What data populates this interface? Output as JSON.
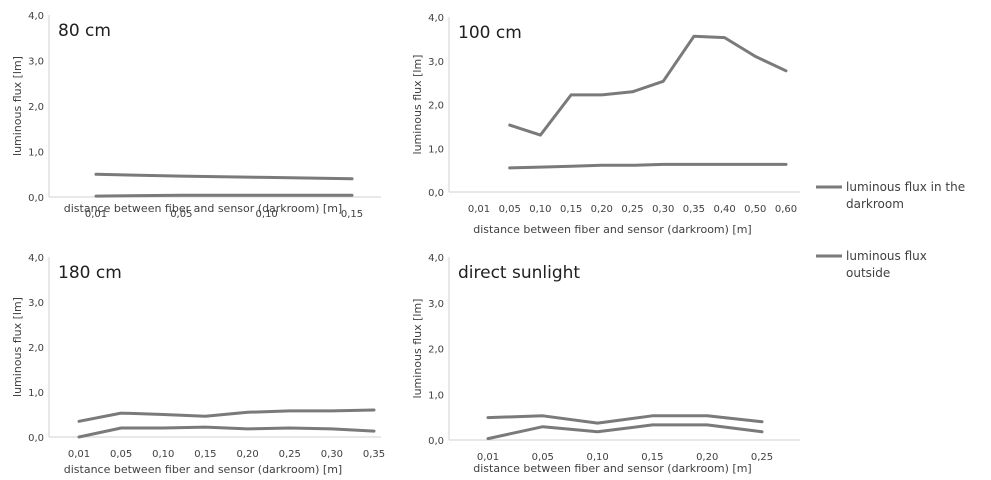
{
  "chart_data": [
    {
      "type": "line",
      "title": "80 cm",
      "xlabel": "distance between fiber and sensor (darkroom) [m]",
      "ylabel": "luminous flux [lm]",
      "ylim": [
        0,
        4
      ],
      "yticks": [
        "0,0",
        "1,0",
        "2,0",
        "3,0",
        "4,0"
      ],
      "categories": [
        "0,01",
        "0,05",
        "0,10",
        "0,15"
      ],
      "series": [
        {
          "key": "darkroom",
          "values": [
            0.5,
            0.46,
            0.43,
            0.4
          ]
        },
        {
          "key": "outside",
          "values": [
            0.02,
            0.04,
            0.04,
            0.04
          ]
        }
      ]
    },
    {
      "type": "line",
      "title": "100 cm",
      "xlabel": "distance between fiber and sensor (darkroom) [m]",
      "ylabel": "luminous flux [lm]",
      "ylim": [
        0,
        4
      ],
      "yticks": [
        "0,0",
        "1,0",
        "2,0",
        "3,0",
        "4,0"
      ],
      "categories": [
        "0,01",
        "0,05",
        "0,10",
        "0,15",
        "0,20",
        "0,25",
        "0,30",
        "0,35",
        "0,40",
        "0,50",
        "0,60"
      ],
      "series": [
        {
          "key": "darkroom",
          "values": [
            null,
            1.53,
            1.3,
            2.22,
            2.22,
            2.29,
            2.53,
            3.56,
            3.53,
            3.1,
            2.77
          ]
        },
        {
          "key": "outside",
          "values": [
            null,
            0.55,
            0.57,
            0.59,
            0.61,
            0.61,
            0.63,
            0.63,
            0.63,
            0.63,
            0.63
          ]
        }
      ]
    },
    {
      "type": "line",
      "title": "180 cm",
      "xlabel": "distance between fiber and sensor (darkroom) [m]",
      "ylabel": "luminous flux [lm]",
      "ylim": [
        0,
        4
      ],
      "yticks": [
        "0,0",
        "1,0",
        "2,0",
        "3,0",
        "4,0"
      ],
      "categories": [
        "0,01",
        "0,05",
        "0,10",
        "0,15",
        "0,20",
        "0,25",
        "0,30",
        "0,35"
      ],
      "series": [
        {
          "key": "darkroom",
          "values": [
            0.35,
            0.53,
            0.5,
            0.46,
            0.55,
            0.58,
            0.58,
            0.6
          ]
        },
        {
          "key": "outside",
          "values": [
            0.0,
            0.2,
            0.2,
            0.22,
            0.18,
            0.2,
            0.18,
            0.13
          ]
        }
      ]
    },
    {
      "type": "line",
      "title": "direct sunlight",
      "xlabel": "distance between fiber and sensor (darkroom) [m]",
      "ylabel": "luminous flux [lm]",
      "ylim": [
        0,
        4
      ],
      "yticks": [
        "0,0",
        "1,0",
        "2,0",
        "3,0",
        "4,0"
      ],
      "categories": [
        "0,01",
        "0,05",
        "0,10",
        "0,15",
        "0,20",
        "0,25"
      ],
      "series": [
        {
          "key": "darkroom",
          "values": [
            0.49,
            0.53,
            0.37,
            0.53,
            0.53,
            0.4
          ]
        },
        {
          "key": "outside",
          "values": [
            0.03,
            0.29,
            0.18,
            0.33,
            0.33,
            0.18
          ]
        }
      ]
    }
  ],
  "legend": {
    "position": "right",
    "items": [
      {
        "key": "darkroom",
        "lines": [
          "luminous flux in the",
          "darkroom"
        ],
        "color": "#7a7a7a"
      },
      {
        "key": "outside",
        "lines": [
          "luminous flux",
          "outside"
        ],
        "color": "#7a7a7a"
      }
    ]
  },
  "colors": {
    "series": "#7a7a7a",
    "axis": "#d0d0d0",
    "text": "#404040"
  }
}
